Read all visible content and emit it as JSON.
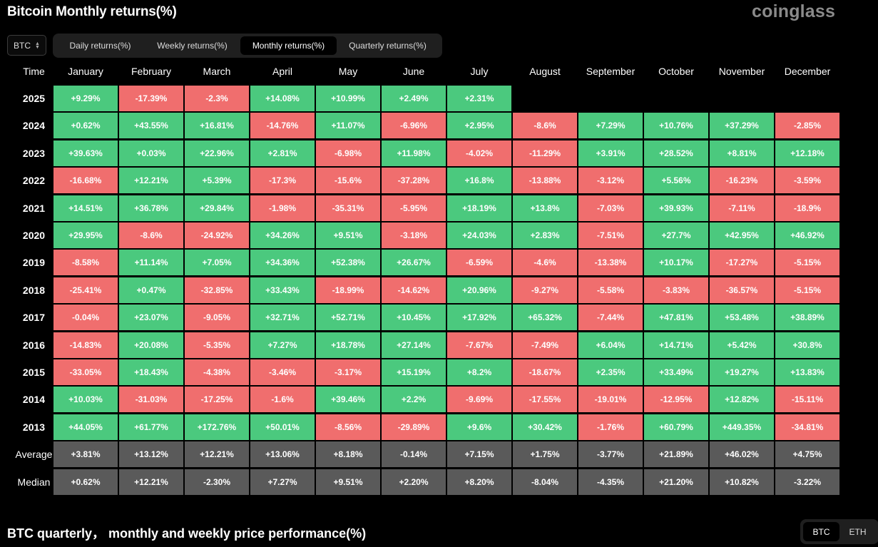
{
  "header": {
    "title": "Bitcoin Monthly returns(%)",
    "logo": "coinglass"
  },
  "controls": {
    "coin_select": "BTC",
    "tabs": [
      {
        "label": "Daily returns(%)",
        "active": false
      },
      {
        "label": "Weekly returns(%)",
        "active": false
      },
      {
        "label": "Monthly returns(%)",
        "active": true
      },
      {
        "label": "Quarterly returns(%)",
        "active": false
      }
    ]
  },
  "table": {
    "columns": [
      "Time",
      "January",
      "February",
      "March",
      "April",
      "May",
      "June",
      "July",
      "August",
      "September",
      "October",
      "November",
      "December"
    ],
    "rows": [
      {
        "year": "2025",
        "values": [
          "+9.29%",
          "-17.39%",
          "-2.3%",
          "+14.08%",
          "+10.99%",
          "+2.49%",
          "+2.31%",
          "",
          "",
          "",
          "",
          ""
        ]
      },
      {
        "year": "2024",
        "values": [
          "+0.62%",
          "+43.55%",
          "+16.81%",
          "-14.76%",
          "+11.07%",
          "-6.96%",
          "+2.95%",
          "-8.6%",
          "+7.29%",
          "+10.76%",
          "+37.29%",
          "-2.85%"
        ]
      },
      {
        "year": "2023",
        "values": [
          "+39.63%",
          "+0.03%",
          "+22.96%",
          "+2.81%",
          "-6.98%",
          "+11.98%",
          "-4.02%",
          "-11.29%",
          "+3.91%",
          "+28.52%",
          "+8.81%",
          "+12.18%"
        ]
      },
      {
        "year": "2022",
        "values": [
          "-16.68%",
          "+12.21%",
          "+5.39%",
          "-17.3%",
          "-15.6%",
          "-37.28%",
          "+16.8%",
          "-13.88%",
          "-3.12%",
          "+5.56%",
          "-16.23%",
          "-3.59%"
        ]
      },
      {
        "year": "2021",
        "values": [
          "+14.51%",
          "+36.78%",
          "+29.84%",
          "-1.98%",
          "-35.31%",
          "-5.95%",
          "+18.19%",
          "+13.8%",
          "-7.03%",
          "+39.93%",
          "-7.11%",
          "-18.9%"
        ]
      },
      {
        "year": "2020",
        "values": [
          "+29.95%",
          "-8.6%",
          "-24.92%",
          "+34.26%",
          "+9.51%",
          "-3.18%",
          "+24.03%",
          "+2.83%",
          "-7.51%",
          "+27.7%",
          "+42.95%",
          "+46.92%"
        ]
      },
      {
        "year": "2019",
        "values": [
          "-8.58%",
          "+11.14%",
          "+7.05%",
          "+34.36%",
          "+52.38%",
          "+26.67%",
          "-6.59%",
          "-4.6%",
          "-13.38%",
          "+10.17%",
          "-17.27%",
          "-5.15%"
        ]
      },
      {
        "year": "2018",
        "values": [
          "-25.41%",
          "+0.47%",
          "-32.85%",
          "+33.43%",
          "-18.99%",
          "-14.62%",
          "+20.96%",
          "-9.27%",
          "-5.58%",
          "-3.83%",
          "-36.57%",
          "-5.15%"
        ]
      },
      {
        "year": "2017",
        "values": [
          "-0.04%",
          "+23.07%",
          "-9.05%",
          "+32.71%",
          "+52.71%",
          "+10.45%",
          "+17.92%",
          "+65.32%",
          "-7.44%",
          "+47.81%",
          "+53.48%",
          "+38.89%"
        ]
      },
      {
        "year": "2016",
        "values": [
          "-14.83%",
          "+20.08%",
          "-5.35%",
          "+7.27%",
          "+18.78%",
          "+27.14%",
          "-7.67%",
          "-7.49%",
          "+6.04%",
          "+14.71%",
          "+5.42%",
          "+30.8%"
        ]
      },
      {
        "year": "2015",
        "values": [
          "-33.05%",
          "+18.43%",
          "-4.38%",
          "-3.46%",
          "-3.17%",
          "+15.19%",
          "+8.2%",
          "-18.67%",
          "+2.35%",
          "+33.49%",
          "+19.27%",
          "+13.83%"
        ]
      },
      {
        "year": "2014",
        "values": [
          "+10.03%",
          "-31.03%",
          "-17.25%",
          "-1.6%",
          "+39.46%",
          "+2.2%",
          "-9.69%",
          "-17.55%",
          "-19.01%",
          "-12.95%",
          "+12.82%",
          "-15.11%"
        ]
      },
      {
        "year": "2013",
        "values": [
          "+44.05%",
          "+61.77%",
          "+172.76%",
          "+50.01%",
          "-8.56%",
          "-29.89%",
          "+9.6%",
          "+30.42%",
          "-1.76%",
          "+60.79%",
          "+449.35%",
          "-34.81%"
        ]
      }
    ],
    "stats": [
      {
        "label": "Average",
        "values": [
          "+3.81%",
          "+13.12%",
          "+12.21%",
          "+13.06%",
          "+8.18%",
          "-0.14%",
          "+7.15%",
          "+1.75%",
          "-3.77%",
          "+21.89%",
          "+46.02%",
          "+4.75%"
        ]
      },
      {
        "label": "Median",
        "values": [
          "+0.62%",
          "+12.21%",
          "-2.30%",
          "+7.27%",
          "+9.51%",
          "+2.20%",
          "+8.20%",
          "-8.04%",
          "-4.35%",
          "+21.20%",
          "+10.82%",
          "-3.22%"
        ]
      }
    ]
  },
  "colors": {
    "positive": "#4bc97e",
    "negative": "#f06e6e",
    "stat": "#5a5a5a"
  },
  "section": {
    "title": "BTC quarterly，  monthly and weekly price performance(%)",
    "toggle": [
      {
        "label": "BTC",
        "active": true
      },
      {
        "label": "ETH",
        "active": false
      }
    ]
  }
}
